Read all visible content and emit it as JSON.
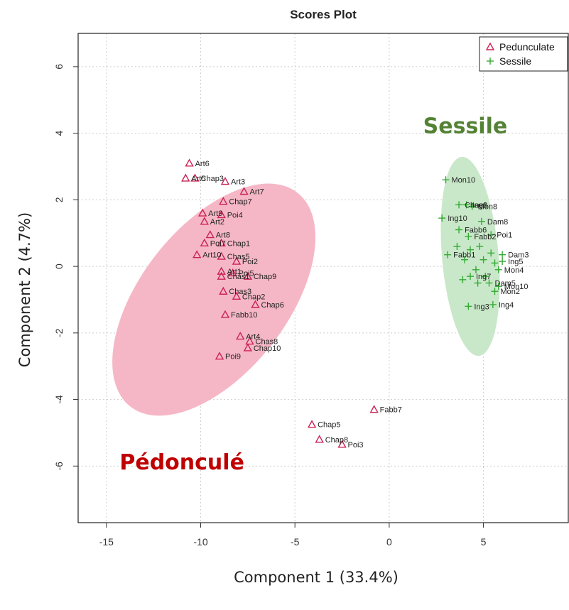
{
  "chart_data": {
    "type": "scatter",
    "title": "Scores Plot",
    "xlabel": "Component 1 (33.4%)",
    "ylabel": "Component 2 (4.7%)",
    "xlim": [
      -16.5,
      9.5
    ],
    "ylim": [
      -7.7,
      7.0
    ],
    "xticks": [
      -15,
      -10,
      -5,
      0,
      5
    ],
    "yticks": [
      6,
      4,
      2,
      0,
      -2,
      -4,
      -6
    ],
    "grid": true,
    "legend_position": "top-right",
    "annotations": [
      {
        "text": "Sessile",
        "color": "#548235",
        "x": 1.8,
        "y": 4.0
      },
      {
        "text": "Pédonculé",
        "color": "#c00000",
        "x": -14.3,
        "y": -6.1
      }
    ],
    "series": [
      {
        "name": "Pedunculate",
        "marker": "triangle",
        "color": "#cc2255",
        "ellipse": {
          "cx": -9.3,
          "cy": -1.0,
          "rx": 7.2,
          "ry": 2.2,
          "angle_deg": -52,
          "fill": "#f5b7c6"
        },
        "points": [
          {
            "label": "Art6",
            "x": -10.6,
            "y": 3.1
          },
          {
            "label": "Art5",
            "x": -10.8,
            "y": 2.65
          },
          {
            "label": "Chap3",
            "x": -10.3,
            "y": 2.65
          },
          {
            "label": "Art3",
            "x": -8.7,
            "y": 2.55
          },
          {
            "label": "Art7",
            "x": -7.7,
            "y": 2.25
          },
          {
            "label": "Chap7",
            "x": -8.8,
            "y": 1.95
          },
          {
            "label": "Art9",
            "x": -9.9,
            "y": 1.6
          },
          {
            "label": "Poi4",
            "x": -8.9,
            "y": 1.55
          },
          {
            "label": "Art2",
            "x": -9.8,
            "y": 1.35
          },
          {
            "label": "Art8",
            "x": -9.5,
            "y": 0.95
          },
          {
            "label": "Poi7",
            "x": -9.8,
            "y": 0.7
          },
          {
            "label": "Chap1",
            "x": -8.9,
            "y": 0.7
          },
          {
            "label": "Art10",
            "x": -10.2,
            "y": 0.35
          },
          {
            "label": "Chas5",
            "x": -8.9,
            "y": 0.3
          },
          {
            "label": "Poi2",
            "x": -8.1,
            "y": 0.15
          },
          {
            "label": "Art1",
            "x": -8.9,
            "y": -0.15
          },
          {
            "label": "Poi5",
            "x": -8.3,
            "y": -0.2
          },
          {
            "label": "Chas1",
            "x": -8.9,
            "y": -0.3
          },
          {
            "label": "Chap9",
            "x": -7.5,
            "y": -0.3
          },
          {
            "label": "Chas3",
            "x": -8.8,
            "y": -0.75
          },
          {
            "label": "Chap2",
            "x": -8.1,
            "y": -0.9
          },
          {
            "label": "Chap6",
            "x": -7.1,
            "y": -1.15
          },
          {
            "label": "Fabb10",
            "x": -8.7,
            "y": -1.45
          },
          {
            "label": "Art4",
            "x": -7.9,
            "y": -2.1
          },
          {
            "label": "Chas8",
            "x": -7.4,
            "y": -2.25
          },
          {
            "label": "Chap10",
            "x": -7.5,
            "y": -2.45
          },
          {
            "label": "Poi9",
            "x": -9.0,
            "y": -2.7
          },
          {
            "label": "Fabb7",
            "x": -0.8,
            "y": -4.3
          },
          {
            "label": "Chap5",
            "x": -4.1,
            "y": -4.75
          },
          {
            "label": "Chap8",
            "x": -3.7,
            "y": -5.2
          },
          {
            "label": "Poi3",
            "x": -2.5,
            "y": -5.35
          }
        ]
      },
      {
        "name": "Sessile",
        "marker": "plus",
        "color": "#33aa33",
        "ellipse": {
          "cx": 4.3,
          "cy": 0.3,
          "rx": 1.5,
          "ry": 3.0,
          "angle_deg": -5,
          "fill": "#c9e8c9"
        },
        "points": [
          {
            "label": "Mon10",
            "x": 3.0,
            "y": 2.6
          },
          {
            "label": "Chas1",
            "x": 3.7,
            "y": 1.85
          },
          {
            "label": "Ing8",
            "x": 4.1,
            "y": 1.85
          },
          {
            "label": "Mon8",
            "x": 4.4,
            "y": 1.8
          },
          {
            "label": "Ing10",
            "x": 2.8,
            "y": 1.45
          },
          {
            "label": "Dam8",
            "x": 4.9,
            "y": 1.35
          },
          {
            "label": "Fabb6",
            "x": 3.7,
            "y": 1.1
          },
          {
            "label": "Poi1",
            "x": 5.4,
            "y": 0.95
          },
          {
            "label": "Fabb2",
            "x": 4.2,
            "y": 0.9
          },
          {
            "label": "Dam3",
            "x": 6.0,
            "y": 0.35
          },
          {
            "label": "Fabb1",
            "x": 3.1,
            "y": 0.35
          },
          {
            "label": "Ing5",
            "x": 6.0,
            "y": 0.15
          },
          {
            "label": "Mon4",
            "x": 5.8,
            "y": -0.1
          },
          {
            "label": "Ing7",
            "x": 4.3,
            "y": -0.3
          },
          {
            "label": "Dam5",
            "x": 5.3,
            "y": -0.5
          },
          {
            "label": "Mon10",
            "x": 5.8,
            "y": -0.6
          },
          {
            "label": "Mon2",
            "x": 5.6,
            "y": -0.75
          },
          {
            "label": "Ing3",
            "x": 4.2,
            "y": -1.2
          },
          {
            "label": "Ing4",
            "x": 5.5,
            "y": -1.15
          },
          {
            "label": "",
            "x": 4.8,
            "y": 0.6
          },
          {
            "label": "",
            "x": 4.3,
            "y": 0.5
          },
          {
            "label": "",
            "x": 5.0,
            "y": 0.2
          },
          {
            "label": "",
            "x": 4.6,
            "y": -0.1
          },
          {
            "label": "",
            "x": 3.9,
            "y": -0.4
          },
          {
            "label": "",
            "x": 5.4,
            "y": 0.4
          },
          {
            "label": "",
            "x": 4.7,
            "y": -0.5
          },
          {
            "label": "",
            "x": 3.6,
            "y": 0.6
          },
          {
            "label": "",
            "x": 5.1,
            "y": -0.3
          },
          {
            "label": "",
            "x": 4.0,
            "y": 0.2
          },
          {
            "label": "",
            "x": 5.6,
            "y": 0.1
          }
        ]
      }
    ]
  }
}
